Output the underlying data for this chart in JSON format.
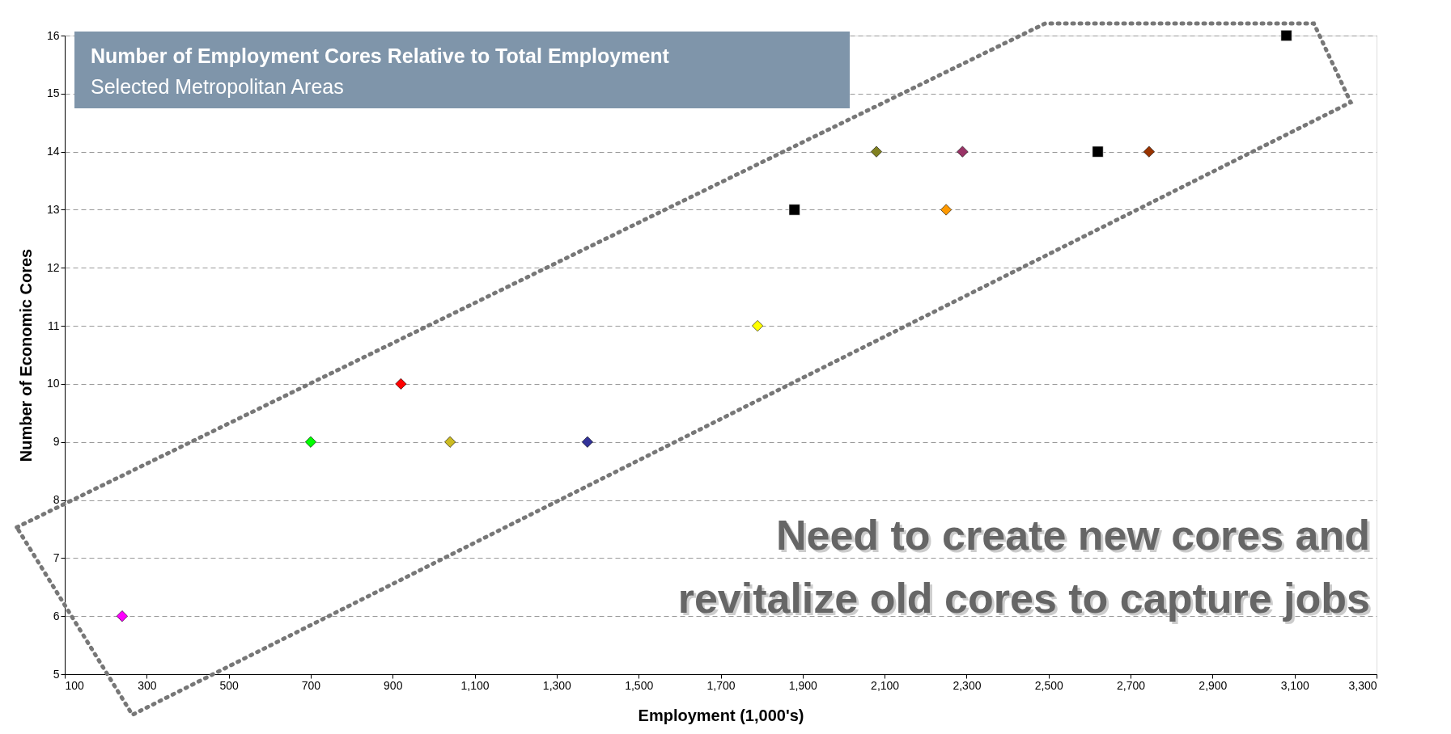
{
  "chart_data": {
    "type": "scatter",
    "title": "Number of Employment Cores Relative to Total Employment",
    "subtitle": "Selected Metropolitan Areas",
    "xlabel": "Employment (1,000's)",
    "ylabel": "Number of Economic Cores",
    "xlim": [
      100,
      3300
    ],
    "xticks": [
      {
        "value": 100,
        "label": "100"
      },
      {
        "value": 300,
        "label": "300"
      },
      {
        "value": 500,
        "label": "500"
      },
      {
        "value": 700,
        "label": "700"
      },
      {
        "value": 900,
        "label": "900"
      },
      {
        "value": 1100,
        "label": "1,100"
      },
      {
        "value": 1300,
        "label": "1,300"
      },
      {
        "value": 1500,
        "label": "1,500"
      },
      {
        "value": 1700,
        "label": "1,700"
      },
      {
        "value": 1900,
        "label": "1,900"
      },
      {
        "value": 2100,
        "label": "2,100"
      },
      {
        "value": 2300,
        "label": "2,300"
      },
      {
        "value": 2500,
        "label": "2,500"
      },
      {
        "value": 2700,
        "label": "2,700"
      },
      {
        "value": 2900,
        "label": "2,900"
      },
      {
        "value": 3100,
        "label": "3,100"
      },
      {
        "value": 3300,
        "label": "3,300"
      }
    ],
    "ylim": [
      5,
      16
    ],
    "yticks": [
      5,
      6,
      7,
      8,
      9,
      10,
      11,
      12,
      13,
      14,
      15,
      16
    ],
    "grid": "y",
    "series": [
      {
        "type": "scatter",
        "marker": "diamond",
        "x": [
          240,
          700,
          920,
          1040,
          1375,
          1790,
          2080,
          2250,
          2290,
          2745
        ],
        "values": [
          6,
          9,
          10,
          9,
          9,
          11,
          14,
          13,
          14,
          14
        ],
        "colors": [
          "#ff00ff",
          "#00ff00",
          "#ff0000",
          "#ccbb22",
          "#333399",
          "#ffff00",
          "#808020",
          "#ff9900",
          "#993366",
          "#993300"
        ]
      },
      {
        "type": "scatter",
        "marker": "square",
        "x": [
          1880,
          2620,
          3080
        ],
        "values": [
          13,
          14,
          16
        ],
        "color": "#000000"
      }
    ],
    "annotations": [
      "Need to create new cores and",
      "revitalize old cores to capture jobs"
    ]
  }
}
